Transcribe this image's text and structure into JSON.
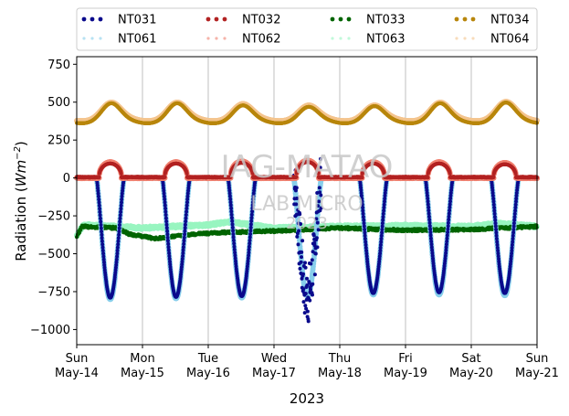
{
  "chart_data": {
    "type": "scatter",
    "title": "",
    "xlabel": "2023",
    "ylabel": "Radiation (Wm⁻²)",
    "ylabel_parts": {
      "prefix": "Radiation (",
      "unit_base": "Wm",
      "unit_exp": "−2",
      "suffix": ")"
    },
    "x_start": "2023-05-14",
    "x_end": "2023-05-21",
    "ylim": [
      -1100,
      800
    ],
    "grid": "x-only",
    "legend_position": "top, outside plot, 4 columns",
    "x_ticks": [
      {
        "day": "Sun",
        "date": "May-14"
      },
      {
        "day": "Mon",
        "date": "May-15"
      },
      {
        "day": "Tue",
        "date": "May-16"
      },
      {
        "day": "Wed",
        "date": "May-17"
      },
      {
        "day": "Thu",
        "date": "May-18"
      },
      {
        "day": "Fri",
        "date": "May-19"
      },
      {
        "day": "Sat",
        "date": "May-20"
      },
      {
        "day": "Sun",
        "date": "May-21"
      }
    ],
    "y_ticks": [
      {
        "value": 750,
        "label": "750"
      },
      {
        "value": 500,
        "label": "500"
      },
      {
        "value": 250,
        "label": "250"
      },
      {
        "value": 0,
        "label": "0"
      },
      {
        "value": -250,
        "label": "−250"
      },
      {
        "value": -500,
        "label": "−500"
      },
      {
        "value": -750,
        "label": "−750"
      },
      {
        "value": -1000,
        "label": "−1000"
      }
    ],
    "series": [
      {
        "name": "NT031",
        "color": "#0a0a8c",
        "kind": "net_shortwave",
        "night_value": 0,
        "day_values": [
          -790,
          -785,
          -780,
          -770,
          -760,
          -755,
          -760
        ],
        "anomaly_day": 3
      },
      {
        "name": "NT032",
        "color": "#b22222",
        "kind": "longwave_day",
        "night_value": 5,
        "day_values": [
          95,
          95,
          100,
          105,
          95,
          95,
          90
        ]
      },
      {
        "name": "NT033",
        "color": "#006400",
        "kind": "flat",
        "level_points": [
          [
            0,
            -390
          ],
          [
            0.08,
            -320
          ],
          [
            0.6,
            -330
          ],
          [
            0.8,
            -370
          ],
          [
            1.2,
            -400
          ],
          [
            1.8,
            -370
          ],
          [
            2.2,
            -360
          ],
          [
            3.0,
            -350
          ],
          [
            4.0,
            -330
          ],
          [
            5.0,
            -345
          ],
          [
            6.0,
            -340
          ],
          [
            6.5,
            -330
          ],
          [
            7.0,
            -320
          ]
        ]
      },
      {
        "name": "NT034",
        "color": "#b8860b",
        "kind": "upper_wave",
        "night_value": 375,
        "day_values": [
          485,
          485,
          470,
          460,
          465,
          485,
          490
        ]
      },
      {
        "name": "NT061",
        "color": "#87ceeb",
        "kind": "net_shortwave",
        "night_value": 0,
        "day_values": [
          -800,
          -795,
          -790,
          -780,
          -770,
          -770,
          -775
        ]
      },
      {
        "name": "NT062",
        "color": "#f08070",
        "kind": "longwave_day",
        "night_value": 0,
        "day_values": [
          105,
          105,
          110,
          115,
          105,
          105,
          100
        ]
      },
      {
        "name": "NT063",
        "color": "#98f5c0",
        "kind": "flat",
        "level_points": [
          [
            0,
            -380
          ],
          [
            0.1,
            -310
          ],
          [
            1.0,
            -330
          ],
          [
            2.0,
            -310
          ],
          [
            2.3,
            -290
          ],
          [
            3.0,
            -330
          ],
          [
            4.0,
            -320
          ],
          [
            5.0,
            -315
          ],
          [
            6.0,
            -320
          ],
          [
            6.4,
            -300
          ],
          [
            7.0,
            -320
          ]
        ]
      },
      {
        "name": "NT064",
        "color": "#f4c48e",
        "kind": "upper_wave",
        "night_value": 390,
        "day_values": [
          490,
          490,
          480,
          470,
          470,
          490,
          495
        ]
      }
    ],
    "watermark": [
      "IAG-MATAO",
      "LAB MICRO",
      "2023"
    ]
  }
}
